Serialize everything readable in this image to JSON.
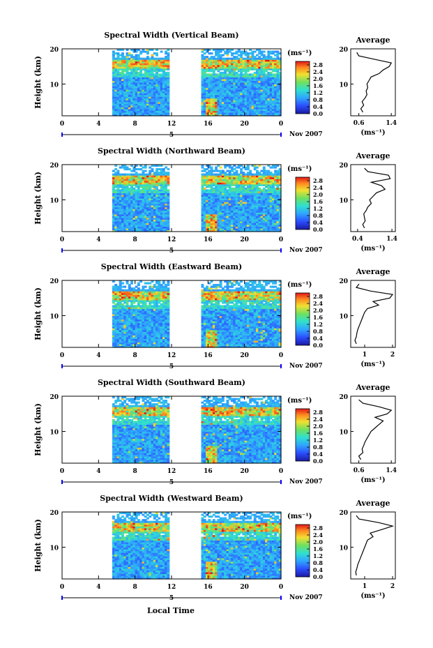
{
  "figure": {
    "x_axis_label": "Local Time",
    "date_label": "Nov 2007",
    "bottom_day": "5",
    "colorbar_unit": "(ms⁻¹)",
    "avg_title": "Average",
    "avg_xlabel": "(ms⁻¹)",
    "y_axis_label": "Height (km)"
  },
  "chart_data": [
    {
      "type": "heatmap",
      "title": "Spectral Width (Vertical Beam)",
      "ylabel": "Height (km)",
      "xlim": [
        0,
        24
      ],
      "ylim": [
        1,
        20
      ],
      "xticks": [
        "0",
        "4",
        "8",
        "12",
        "16",
        "20",
        "0"
      ],
      "yticks": [
        "10",
        "20"
      ],
      "colorbar": {
        "ticks": [
          "0.0",
          "0.4",
          "0.8",
          "1.2",
          "1.6",
          "2.0",
          "2.4",
          "2.8"
        ],
        "range": [
          0,
          3.0
        ]
      },
      "data_gaps_hours": [
        [
          0,
          5.4
        ],
        [
          11.7,
          15.2
        ]
      ],
      "average_profile": {
        "title": "Average",
        "xticks": [
          "0.6",
          "1.4"
        ],
        "xlim": [
          0.4,
          1.5
        ],
        "ylim": [
          1,
          20
        ],
        "yticks": [
          "10",
          "20"
        ],
        "heights": [
          2,
          3,
          4,
          5,
          6,
          7,
          8,
          9,
          10,
          11,
          12,
          13,
          14,
          15,
          16,
          17,
          18,
          19
        ],
        "values": [
          0.7,
          0.65,
          0.72,
          0.68,
          0.75,
          0.8,
          0.78,
          0.82,
          0.8,
          0.85,
          0.9,
          1.1,
          1.2,
          1.35,
          1.4,
          1.0,
          0.6,
          0.55
        ]
      }
    },
    {
      "type": "heatmap",
      "title": "Spectral Width (Northward Beam)",
      "ylabel": "Height (km)",
      "xlim": [
        0,
        24
      ],
      "ylim": [
        1,
        20
      ],
      "xticks": [
        "0",
        "4",
        "8",
        "12",
        "16",
        "20",
        "0"
      ],
      "yticks": [
        "10",
        "20"
      ],
      "colorbar": {
        "ticks": [
          "0.0",
          "0.4",
          "0.8",
          "1.2",
          "1.6",
          "2.0",
          "2.4",
          "2.8"
        ],
        "range": [
          0,
          3.0
        ]
      },
      "data_gaps_hours": [
        [
          0,
          5.4
        ],
        [
          11.7,
          15.2
        ]
      ],
      "average_profile": {
        "title": "Average",
        "xticks": [
          "0.4",
          "1.4"
        ],
        "xlim": [
          0.2,
          1.5
        ],
        "ylim": [
          1,
          20
        ],
        "yticks": [
          "10",
          "20"
        ],
        "heights": [
          2,
          3,
          4,
          5,
          6,
          7,
          8,
          9,
          10,
          11,
          12,
          13,
          14,
          15,
          16,
          17,
          18,
          19
        ],
        "values": [
          0.6,
          0.55,
          0.62,
          0.6,
          0.58,
          0.65,
          0.7,
          0.8,
          0.75,
          0.85,
          0.95,
          1.2,
          1.1,
          0.8,
          1.35,
          1.3,
          0.7,
          0.6
        ]
      }
    },
    {
      "type": "heatmap",
      "title": "Spectral Width (Eastward Beam)",
      "ylabel": "Height (km)",
      "xlim": [
        0,
        24
      ],
      "ylim": [
        1,
        20
      ],
      "xticks": [
        "0",
        "4",
        "8",
        "12",
        "16",
        "20",
        "0"
      ],
      "yticks": [
        "10",
        "20"
      ],
      "colorbar": {
        "ticks": [
          "0.0",
          "0.4",
          "0.8",
          "1.2",
          "1.6",
          "2.0",
          "2.4",
          "2.8"
        ],
        "range": [
          0,
          3.0
        ]
      },
      "data_gaps_hours": [
        [
          0,
          5.4
        ],
        [
          11.7,
          15.2
        ]
      ],
      "average_profile": {
        "title": "Average",
        "xticks": [
          "1",
          "2"
        ],
        "xlim": [
          0.5,
          2.1
        ],
        "ylim": [
          1,
          20
        ],
        "yticks": [
          "10",
          "20"
        ],
        "heights": [
          2,
          3,
          4,
          5,
          6,
          7,
          8,
          9,
          10,
          11,
          12,
          13,
          14,
          15,
          16,
          17,
          18,
          19
        ],
        "values": [
          0.7,
          0.65,
          0.7,
          0.72,
          0.75,
          0.8,
          0.85,
          0.9,
          0.95,
          1.0,
          1.1,
          1.5,
          1.3,
          1.9,
          2.0,
          1.2,
          0.7,
          0.8
        ]
      }
    },
    {
      "type": "heatmap",
      "title": "Spectral Width (Southward Beam)",
      "ylabel": "Height (km)",
      "xlim": [
        0,
        24
      ],
      "ylim": [
        1,
        20
      ],
      "xticks": [
        "0",
        "4",
        "8",
        "12",
        "16",
        "20",
        "0"
      ],
      "yticks": [
        "10",
        "20"
      ],
      "colorbar": {
        "ticks": [
          "0.0",
          "0.4",
          "0.8",
          "1.2",
          "1.6",
          "2.0",
          "2.4",
          "2.8"
        ],
        "range": [
          0,
          3.0
        ]
      },
      "data_gaps_hours": [
        [
          0,
          5.4
        ],
        [
          11.7,
          15.2
        ]
      ],
      "average_profile": {
        "title": "Average",
        "xticks": [
          "0.6",
          "1.4"
        ],
        "xlim": [
          0.4,
          1.5
        ],
        "ylim": [
          1,
          20
        ],
        "yticks": [
          "10",
          "20"
        ],
        "heights": [
          2,
          3,
          4,
          5,
          6,
          7,
          8,
          9,
          10,
          11,
          12,
          13,
          14,
          15,
          16,
          17,
          18,
          19
        ],
        "values": [
          0.65,
          0.6,
          0.7,
          0.68,
          0.72,
          0.75,
          0.8,
          0.85,
          0.9,
          1.0,
          1.1,
          1.2,
          1.0,
          1.3,
          1.4,
          1.1,
          0.7,
          0.6
        ]
      }
    },
    {
      "type": "heatmap",
      "title": "Spectral Width (Westward Beam)",
      "ylabel": "Height (km)",
      "xlim": [
        0,
        24
      ],
      "ylim": [
        1,
        20
      ],
      "xticks": [
        "0",
        "4",
        "8",
        "12",
        "16",
        "20",
        "0"
      ],
      "yticks": [
        "10",
        "20"
      ],
      "colorbar": {
        "ticks": [
          "0.0",
          "0.4",
          "0.8",
          "1.2",
          "1.6",
          "2.0",
          "2.4",
          "2.8"
        ],
        "range": [
          0,
          3.0
        ]
      },
      "data_gaps_hours": [
        [
          0,
          5.4
        ],
        [
          11.7,
          15.2
        ]
      ],
      "average_profile": {
        "title": "Average",
        "xticks": [
          "1",
          "2"
        ],
        "xlim": [
          0.5,
          2.1
        ],
        "ylim": [
          1,
          20
        ],
        "yticks": [
          "10",
          "20"
        ],
        "heights": [
          2,
          3,
          4,
          5,
          6,
          7,
          8,
          9,
          10,
          11,
          12,
          13,
          14,
          15,
          16,
          17,
          18,
          19
        ],
        "values": [
          0.7,
          0.68,
          0.72,
          0.75,
          0.8,
          0.85,
          0.9,
          0.95,
          1.0,
          1.05,
          1.1,
          1.3,
          1.2,
          1.6,
          2.0,
          1.5,
          0.8,
          0.7
        ]
      }
    }
  ]
}
